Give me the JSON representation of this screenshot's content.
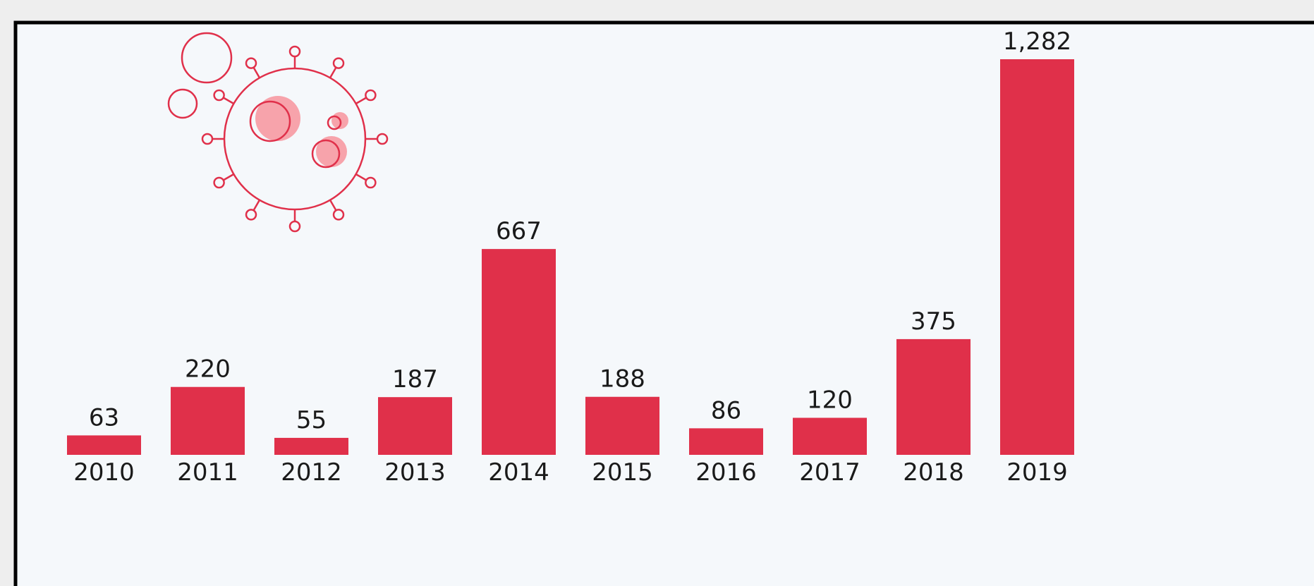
{
  "chart_data": {
    "type": "bar",
    "categories": [
      "2010",
      "2011",
      "2012",
      "2013",
      "2014",
      "2015",
      "2016",
      "2017",
      "2018",
      "2019"
    ],
    "values": [
      63,
      220,
      55,
      187,
      667,
      188,
      86,
      120,
      375,
      1282
    ],
    "value_labels": [
      "63",
      "220",
      "55",
      "187",
      "667",
      "188",
      "86",
      "120",
      "375",
      "1,282"
    ],
    "color": "#e0304a"
  }
}
